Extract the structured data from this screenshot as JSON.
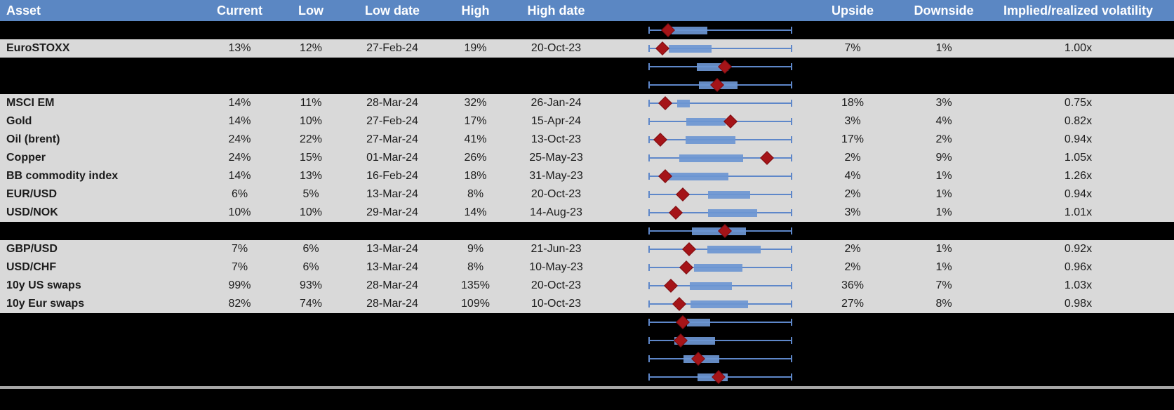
{
  "header": {
    "columns": [
      "Asset",
      "Current",
      "Low",
      "Low date",
      "High",
      "High date",
      "",
      "Upside",
      "Downside",
      "Implied/realized volatility"
    ]
  },
  "colors": {
    "header_bg": "#5B87C3",
    "row_bg": "#D9D9D9",
    "black": "#000000",
    "whisker": "#5E87C9",
    "box": "#6D96D3",
    "marker": "#A51418",
    "separator": "#A6A6A6"
  },
  "chart": {
    "type": "boxplot",
    "orientation": "horizontal",
    "description": "Each row shows a blue whisker spanning the full range, a blue box, and a dark-red diamond marker; positions are fractions 0-1 of the whisker span.",
    "value_range": [
      0,
      1
    ]
  },
  "rows": [
    {
      "kind": "redacted",
      "asset": "",
      "current": "",
      "low": "",
      "low_date": "",
      "high": "",
      "high_date": "",
      "upside": "",
      "downside": "",
      "impl_vs_real": "",
      "range_plot": {
        "box_start": 0.161,
        "box_end": 0.41,
        "marker": 0.137
      }
    },
    {
      "kind": "data",
      "asset": "EuroSTOXX",
      "current": "13%",
      "low": "12%",
      "low_date": "27-Feb-24",
      "high": "19%",
      "high_date": "20-Oct-23",
      "upside": "7%",
      "downside": "1%",
      "impl_vs_real": "1.00x",
      "range_plot": {
        "box_start": 0.141,
        "box_end": 0.439,
        "marker": 0.098
      }
    },
    {
      "kind": "redacted",
      "asset": "",
      "current": "",
      "low": "",
      "low_date": "",
      "high": "",
      "high_date": "",
      "upside": "",
      "downside": "",
      "impl_vs_real": "",
      "range_plot": {
        "box_start": 0.337,
        "box_end": 0.556,
        "marker": 0.532
      }
    },
    {
      "kind": "redacted",
      "asset": "",
      "current": "",
      "low": "",
      "low_date": "",
      "high": "",
      "high_date": "",
      "upside": "",
      "downside": "",
      "impl_vs_real": "",
      "range_plot": {
        "box_start": 0.351,
        "box_end": 0.62,
        "marker": 0.478
      }
    },
    {
      "kind": "data",
      "asset": "MSCI EM",
      "current": "14%",
      "low": "11%",
      "low_date": "28-Mar-24",
      "high": "32%",
      "high_date": "26-Jan-24",
      "upside": "18%",
      "downside": "3%",
      "impl_vs_real": "0.75x",
      "range_plot": {
        "box_start": 0.2,
        "box_end": 0.288,
        "marker": 0.117
      }
    },
    {
      "kind": "data",
      "asset": "Gold",
      "current": "14%",
      "low": "10%",
      "low_date": "27-Feb-24",
      "high": "17%",
      "high_date": "15-Apr-24",
      "upside": "3%",
      "downside": "4%",
      "impl_vs_real": "0.82x",
      "range_plot": {
        "box_start": 0.263,
        "box_end": 0.537,
        "marker": 0.571
      }
    },
    {
      "kind": "data",
      "asset": "Oil (brent)",
      "current": "24%",
      "low": "22%",
      "low_date": "27-Mar-24",
      "high": "41%",
      "high_date": "13-Oct-23",
      "upside": "17%",
      "downside": "2%",
      "impl_vs_real": "0.94x",
      "range_plot": {
        "box_start": 0.259,
        "box_end": 0.605,
        "marker": 0.083
      }
    },
    {
      "kind": "data",
      "asset": "Copper",
      "current": "24%",
      "low": "15%",
      "low_date": "01-Mar-24",
      "high": "26%",
      "high_date": "25-May-23",
      "upside": "2%",
      "downside": "9%",
      "impl_vs_real": "1.05x",
      "range_plot": {
        "box_start": 0.215,
        "box_end": 0.659,
        "marker": 0.824
      }
    },
    {
      "kind": "data",
      "asset": "BB commodity index",
      "current": "14%",
      "low": "13%",
      "low_date": "16-Feb-24",
      "high": "18%",
      "high_date": "31-May-23",
      "upside": "4%",
      "downside": "1%",
      "impl_vs_real": "1.26x",
      "range_plot": {
        "box_start": 0.132,
        "box_end": 0.556,
        "marker": 0.117
      }
    },
    {
      "kind": "data",
      "asset": "EUR/USD",
      "current": "6%",
      "low": "5%",
      "low_date": "13-Mar-24",
      "high": "8%",
      "high_date": "20-Oct-23",
      "upside": "2%",
      "downside": "1%",
      "impl_vs_real": "0.94x",
      "range_plot": {
        "box_start": 0.415,
        "box_end": 0.707,
        "marker": 0.239
      }
    },
    {
      "kind": "data",
      "asset": "USD/NOK",
      "current": "10%",
      "low": "10%",
      "low_date": "29-Mar-24",
      "high": "14%",
      "high_date": "14-Aug-23",
      "upside": "3%",
      "downside": "1%",
      "impl_vs_real": "1.01x",
      "range_plot": {
        "box_start": 0.415,
        "box_end": 0.756,
        "marker": 0.19
      }
    },
    {
      "kind": "redacted",
      "asset": "",
      "current": "",
      "low": "",
      "low_date": "",
      "high": "",
      "high_date": "",
      "upside": "",
      "downside": "",
      "impl_vs_real": "",
      "range_plot": {
        "box_start": 0.302,
        "box_end": 0.678,
        "marker": 0.532
      }
    },
    {
      "kind": "data",
      "asset": "GBP/USD",
      "current": "7%",
      "low": "6%",
      "low_date": "13-Mar-24",
      "high": "9%",
      "high_date": "21-Jun-23",
      "upside": "2%",
      "downside": "1%",
      "impl_vs_real": "0.92x",
      "range_plot": {
        "box_start": 0.41,
        "box_end": 0.78,
        "marker": 0.283
      }
    },
    {
      "kind": "data",
      "asset": "USD/CHF",
      "current": "7%",
      "low": "6%",
      "low_date": "13-Mar-24",
      "high": "8%",
      "high_date": "10-May-23",
      "upside": "2%",
      "downside": "1%",
      "impl_vs_real": "0.96x",
      "range_plot": {
        "box_start": 0.317,
        "box_end": 0.654,
        "marker": 0.263
      }
    },
    {
      "kind": "data",
      "asset": "10y US swaps",
      "current": "99%",
      "low": "93%",
      "low_date": "28-Mar-24",
      "high": "135%",
      "high_date": "20-Oct-23",
      "upside": "36%",
      "downside": "7%",
      "impl_vs_real": "1.03x",
      "range_plot": {
        "box_start": 0.288,
        "box_end": 0.58,
        "marker": 0.156
      }
    },
    {
      "kind": "data",
      "asset": "10y Eur swaps",
      "current": "82%",
      "low": "74%",
      "low_date": "28-Mar-24",
      "high": "109%",
      "high_date": "10-Oct-23",
      "upside": "27%",
      "downside": "8%",
      "impl_vs_real": "0.98x",
      "range_plot": {
        "box_start": 0.293,
        "box_end": 0.693,
        "marker": 0.215
      }
    },
    {
      "kind": "redacted",
      "asset": "",
      "current": "",
      "low": "",
      "low_date": "",
      "high": "",
      "high_date": "",
      "upside": "",
      "downside": "",
      "impl_vs_real": "",
      "range_plot": {
        "box_start": 0.268,
        "box_end": 0.429,
        "marker": 0.239
      }
    },
    {
      "kind": "redacted",
      "asset": "",
      "current": "",
      "low": "",
      "low_date": "",
      "high": "",
      "high_date": "",
      "upside": "",
      "downside": "",
      "impl_vs_real": "",
      "range_plot": {
        "box_start": 0.18,
        "box_end": 0.463,
        "marker": 0.224
      }
    },
    {
      "kind": "redacted",
      "asset": "",
      "current": "",
      "low": "",
      "low_date": "",
      "high": "",
      "high_date": "",
      "upside": "",
      "downside": "",
      "impl_vs_real": "",
      "range_plot": {
        "box_start": 0.244,
        "box_end": 0.493,
        "marker": 0.346
      }
    },
    {
      "kind": "redacted",
      "asset": "",
      "current": "",
      "low": "",
      "low_date": "",
      "high": "",
      "high_date": "",
      "upside": "",
      "downside": "",
      "impl_vs_real": "",
      "range_plot": {
        "box_start": 0.341,
        "box_end": 0.551,
        "marker": 0.488
      }
    }
  ]
}
